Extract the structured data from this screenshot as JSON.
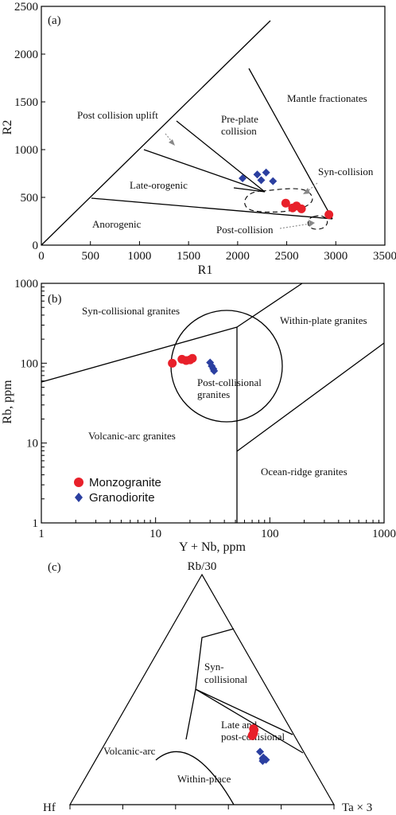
{
  "colors": {
    "monzogranite": "#e8202a",
    "granodiorite": "#2b3fa0",
    "arrow": "#888888"
  },
  "chart_data": [
    {
      "panel_label": "(a)",
      "type": "scatter",
      "xlabel": "R1",
      "ylabel": "R2",
      "xlim": [
        0,
        3500
      ],
      "ylim": [
        0,
        2500
      ],
      "x_ticks": [
        0,
        500,
        1000,
        1500,
        2000,
        2500,
        3000,
        3500
      ],
      "y_ticks": [
        0,
        500,
        1000,
        1500,
        2000,
        2500
      ],
      "regions": [
        "Mantle fractionates",
        "Pre-plate collision",
        "Post collision uplift",
        "Late-orogenic",
        "Anorogenic",
        "Syn-collision",
        "Post-collision"
      ],
      "series": [
        {
          "name": "Monzogranite",
          "marker": "circle",
          "points": [
            [
              2490,
              440
            ],
            [
              2560,
              390
            ],
            [
              2600,
              410
            ],
            [
              2650,
              380
            ],
            [
              2930,
              320
            ]
          ]
        },
        {
          "name": "Granodiorite",
          "marker": "diamond",
          "points": [
            [
              2050,
              700
            ],
            [
              2200,
              740
            ],
            [
              2240,
              680
            ],
            [
              2290,
              760
            ],
            [
              2360,
              670
            ]
          ]
        }
      ]
    },
    {
      "panel_label": "(b)",
      "type": "scatter",
      "xlabel": "Y + Nb, ppm",
      "ylabel": "Rb, ppm",
      "xscale": "log",
      "yscale": "log",
      "xlim": [
        1,
        1000
      ],
      "ylim": [
        1,
        1000
      ],
      "x_ticks": [
        "1",
        "10",
        "100",
        "1000"
      ],
      "y_ticks": [
        "1",
        "10",
        "100",
        "1000"
      ],
      "regions": [
        "Syn-collisional granites",
        "Within-plate granites",
        "Post-collisional granites",
        "Volcanic-arc granites",
        "Ocean-ridge granites"
      ],
      "legend": [
        {
          "name": "Monzogranite",
          "marker": "circle"
        },
        {
          "name": "Granodiorite",
          "marker": "diamond"
        }
      ],
      "series": [
        {
          "name": "Monzogranite",
          "marker": "circle",
          "points": [
            [
              14,
              100
            ],
            [
              17,
              112
            ],
            [
              18.5,
              108
            ],
            [
              20,
              110
            ],
            [
              21,
              115
            ]
          ]
        },
        {
          "name": "Granodiorite",
          "marker": "diamond",
          "points": [
            [
              30,
              102
            ],
            [
              31,
              92
            ],
            [
              32,
              85
            ],
            [
              32.5,
              80
            ]
          ]
        }
      ]
    },
    {
      "panel_label": "(c)",
      "type": "ternary",
      "vertex_labels": {
        "top": "Rb/30",
        "left": "Hf",
        "right": "Ta × 3"
      },
      "regions": [
        "Syn-collisional",
        "Late and post-collisional",
        "Volcanic-arc",
        "Within-place"
      ],
      "series": [
        {
          "name": "Monzogranite",
          "marker": "circle",
          "points": [
            [
              0.33,
              0.14,
              0.53
            ],
            [
              0.325,
              0.14,
              0.535
            ],
            [
              0.31,
              0.15,
              0.54
            ],
            [
              0.305,
              0.155,
              0.54
            ],
            [
              0.3,
              0.16,
              0.54
            ]
          ]
        },
        {
          "name": "Granodiorite",
          "marker": "diamond",
          "points": [
            [
              0.23,
              0.165,
              0.605
            ],
            [
              0.205,
              0.165,
              0.63
            ],
            [
              0.2,
              0.17,
              0.63
            ],
            [
              0.195,
              0.16,
              0.645
            ],
            [
              0.19,
              0.175,
              0.635
            ]
          ]
        }
      ]
    }
  ]
}
